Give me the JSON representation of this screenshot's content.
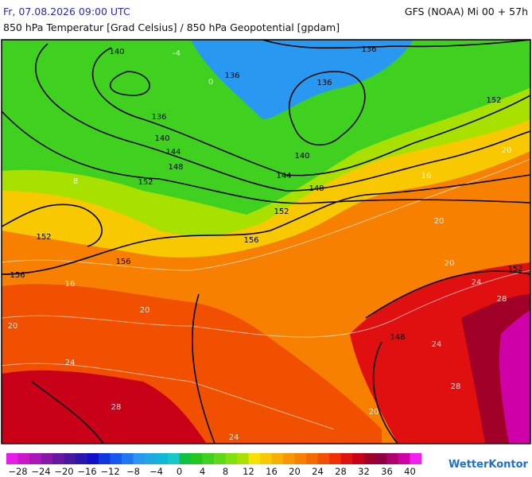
{
  "header": {
    "date": "Fr, 07.08.2026 09:00 UTC",
    "model": "GFS (NOAA) Mi 00 + 57h",
    "subtitle": "850 hPa Temperatur [Grad Celsius] / 850 hPa Geopotential [gpdam]"
  },
  "map": {
    "contour_labels": [
      "140",
      "136",
      "136",
      "136",
      "152",
      "136",
      "140",
      "144",
      "148",
      "140",
      "144",
      "148",
      "152",
      "152",
      "152",
      "156",
      "156",
      "156",
      "152",
      "148"
    ],
    "temperature_labels": [
      "-4",
      "0",
      "8",
      "16",
      "20",
      "20",
      "24",
      "28",
      "24",
      "20",
      "24",
      "28",
      "24",
      "28",
      "20",
      "20",
      "20",
      "16"
    ]
  },
  "legend": {
    "ticks": [
      "−28",
      "−24",
      "−20",
      "−16",
      "−12",
      "−8",
      "−4",
      "0",
      "4",
      "8",
      "12",
      "16",
      "20",
      "24",
      "28",
      "32",
      "36",
      "40"
    ],
    "colors": [
      "#e81ce8",
      "#c818c8",
      "#a818b8",
      "#8818a8",
      "#6818a0",
      "#4818a0",
      "#2818b0",
      "#1010c8",
      "#1038e0",
      "#1458f0",
      "#2078f0",
      "#2898f0",
      "#20a8e0",
      "#10b8d8",
      "#18c8c8",
      "#10c040",
      "#20c820",
      "#40d020",
      "#60d818",
      "#80e010",
      "#a8e000",
      "#f8e000",
      "#f8c800",
      "#f8b000",
      "#f89800",
      "#f88000",
      "#f86800",
      "#f05000",
      "#f03000",
      "#e01010",
      "#c80018",
      "#a00028",
      "#900040",
      "#b00070",
      "#d000a8",
      "#f020f0"
    ]
  },
  "logo": "WetterKontor"
}
